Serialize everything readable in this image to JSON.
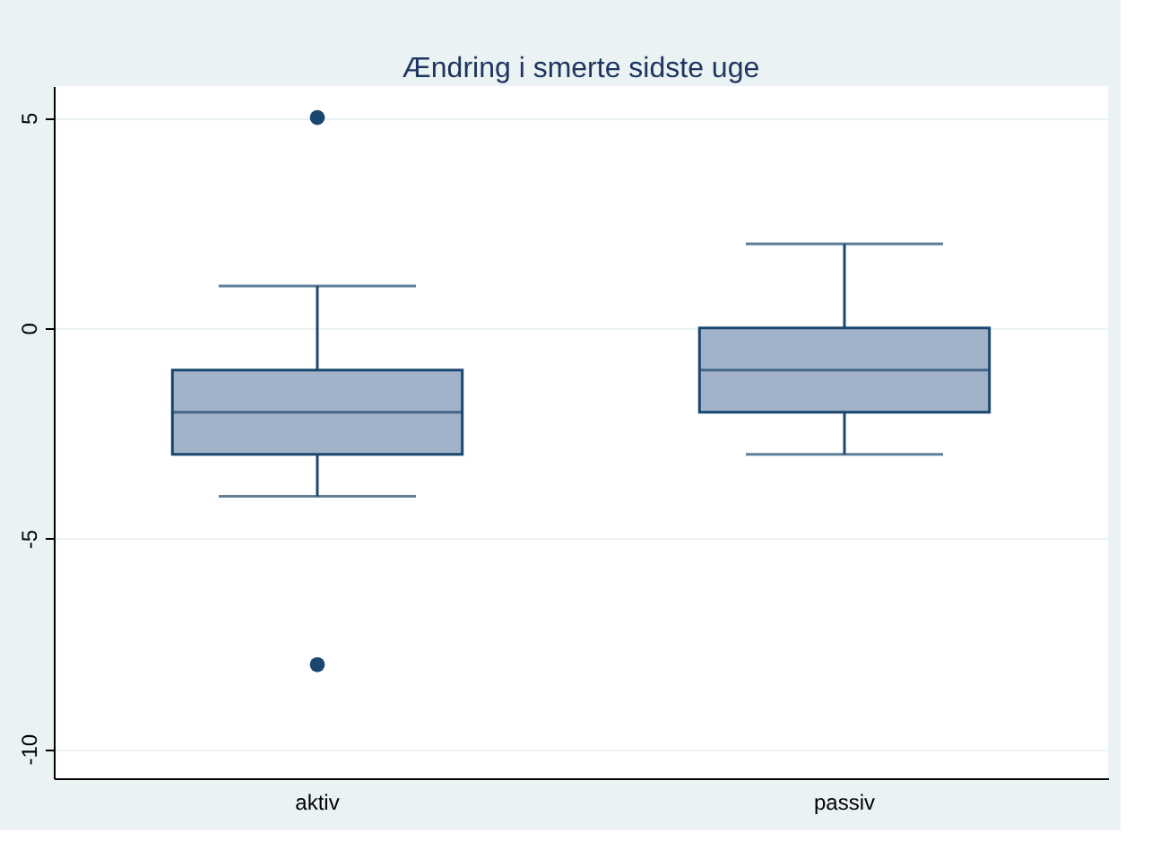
{
  "chart_data": {
    "type": "box",
    "title": "Ændring i  smerte sidste uge",
    "categories": [
      "aktiv",
      "passiv"
    ],
    "boxes": [
      {
        "low": -4,
        "q1": -3,
        "median": -2,
        "q3": -1,
        "high": 1,
        "outliers": [
          5,
          -8
        ]
      },
      {
        "low": -3,
        "q1": -2,
        "median": -1,
        "q3": 0,
        "high": 2
      }
    ],
    "color": "#a2b2c8",
    "ylim": [
      -10.7,
      5.75
    ],
    "yticks": [
      -10,
      -5,
      0,
      5
    ],
    "grid": "y"
  }
}
